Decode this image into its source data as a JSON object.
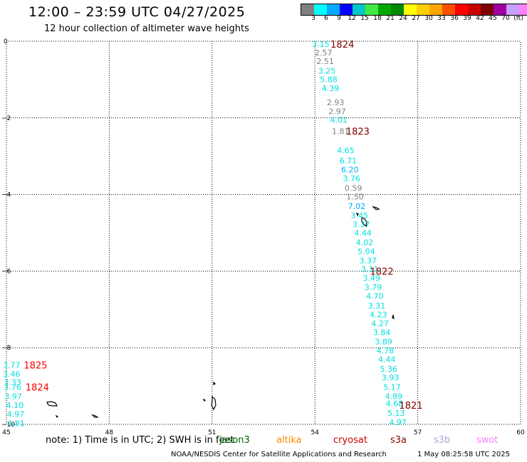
{
  "title": "12:00 – 23:59 UTC 04/27/2025",
  "subtitle": "12 hour collection of altimeter wave heights",
  "legend": {
    "colors": [
      "#808080",
      "#00ffff",
      "#00aaff",
      "#0000ff",
      "#00c8c8",
      "#44e844",
      "#00aa00",
      "#008800",
      "#ffff00",
      "#ffd000",
      "#ffa500",
      "#ff5000",
      "#ff0000",
      "#c80000",
      "#800000",
      "#a000a0",
      "#c8a0ff",
      "#ff80ff",
      "#000000"
    ],
    "labels": [
      "3",
      "6",
      "9",
      "12",
      "15",
      "18",
      "21",
      "24",
      "27",
      "30",
      "33",
      "36",
      "39",
      "42",
      "45",
      "70",
      "(ft)"
    ]
  },
  "axes": {
    "x_ticks": [
      "45",
      "48",
      "51",
      "54",
      "57",
      "60"
    ],
    "y_ticks": [
      "0",
      "−2",
      "−4",
      "−6",
      "−8",
      "−10"
    ],
    "x_range": [
      45,
      60
    ],
    "y_range": [
      0,
      -10
    ]
  },
  "wave_labels": [
    {
      "lon": 54.17,
      "lat": -0.07,
      "text": "3.15",
      "color": "#00e0e0"
    },
    {
      "lon": 54.25,
      "lat": -0.3,
      "text": "2.57",
      "color": "#808080"
    },
    {
      "lon": 54.3,
      "lat": -0.52,
      "text": "2.51",
      "color": "#808080"
    },
    {
      "lon": 54.35,
      "lat": -0.77,
      "text": "3.25",
      "color": "#00e0e0"
    },
    {
      "lon": 54.4,
      "lat": -0.99,
      "text": "5.88",
      "color": "#00e0e0"
    },
    {
      "lon": 54.45,
      "lat": -1.22,
      "text": "4.39",
      "color": "#00e0e0"
    },
    {
      "lon": 54.6,
      "lat": -1.6,
      "text": "2.93",
      "color": "#808080"
    },
    {
      "lon": 54.65,
      "lat": -1.83,
      "text": "2.97",
      "color": "#808080"
    },
    {
      "lon": 54.7,
      "lat": -2.05,
      "text": "4.01",
      "color": "#00e0e0"
    },
    {
      "lon": 54.75,
      "lat": -2.35,
      "text": "1.81",
      "color": "#808080"
    },
    {
      "lon": 54.9,
      "lat": -2.85,
      "text": "4.65",
      "color": "#00e0e0"
    },
    {
      "lon": 54.97,
      "lat": -3.12,
      "text": "6.71",
      "color": "#00e0e0"
    },
    {
      "lon": 55.02,
      "lat": -3.35,
      "text": "6.20",
      "color": "#00aaff"
    },
    {
      "lon": 55.07,
      "lat": -3.58,
      "text": "3.76",
      "color": "#00e0e0"
    },
    {
      "lon": 55.12,
      "lat": -3.83,
      "text": "0.59",
      "color": "#808080"
    },
    {
      "lon": 55.17,
      "lat": -4.05,
      "text": "1.50",
      "color": "#808080"
    },
    {
      "lon": 55.22,
      "lat": -4.3,
      "text": "7.02",
      "color": "#00aaff"
    },
    {
      "lon": 55.3,
      "lat": -4.55,
      "text": "3.45",
      "color": "#00e0e0"
    },
    {
      "lon": 55.35,
      "lat": -4.78,
      "text": "3.37",
      "color": "#00e0e0"
    },
    {
      "lon": 55.4,
      "lat": -5.0,
      "text": "4.44",
      "color": "#00e0e0"
    },
    {
      "lon": 55.45,
      "lat": -5.25,
      "text": "4.02",
      "color": "#00e0e0"
    },
    {
      "lon": 55.5,
      "lat": -5.48,
      "text": "5.04",
      "color": "#00e0e0"
    },
    {
      "lon": 55.55,
      "lat": -5.72,
      "text": "3.37",
      "color": "#00e0e0"
    },
    {
      "lon": 55.6,
      "lat": -5.95,
      "text": "3.11",
      "color": "#00e0e0"
    },
    {
      "lon": 55.65,
      "lat": -6.18,
      "text": "3.49",
      "color": "#00e0e0"
    },
    {
      "lon": 55.7,
      "lat": -6.42,
      "text": "3.79",
      "color": "#00e0e0"
    },
    {
      "lon": 55.75,
      "lat": -6.65,
      "text": "4.70",
      "color": "#00e0e0"
    },
    {
      "lon": 55.8,
      "lat": -6.9,
      "text": "3.31",
      "color": "#00e0e0"
    },
    {
      "lon": 55.85,
      "lat": -7.13,
      "text": "4.23",
      "color": "#00e0e0"
    },
    {
      "lon": 55.9,
      "lat": -7.37,
      "text": "4.27",
      "color": "#00e0e0"
    },
    {
      "lon": 55.95,
      "lat": -7.6,
      "text": "3.84",
      "color": "#00e0e0"
    },
    {
      "lon": 56.0,
      "lat": -7.84,
      "text": "3.89",
      "color": "#00e0e0"
    },
    {
      "lon": 56.05,
      "lat": -8.07,
      "text": "4.78",
      "color": "#00e0e0"
    },
    {
      "lon": 56.1,
      "lat": -8.3,
      "text": "4.44",
      "color": "#00e0e0"
    },
    {
      "lon": 56.15,
      "lat": -8.55,
      "text": "5.36",
      "color": "#00e0e0"
    },
    {
      "lon": 56.2,
      "lat": -8.78,
      "text": "3.93",
      "color": "#00e0e0"
    },
    {
      "lon": 56.25,
      "lat": -9.03,
      "text": "5.17",
      "color": "#00e0e0"
    },
    {
      "lon": 56.3,
      "lat": -9.27,
      "text": "4.89",
      "color": "#00e0e0"
    },
    {
      "lon": 56.32,
      "lat": -9.45,
      "text": "4.68",
      "color": "#00e0e0"
    },
    {
      "lon": 56.37,
      "lat": -9.7,
      "text": "5.13",
      "color": "#00e0e0"
    },
    {
      "lon": 56.42,
      "lat": -9.94,
      "text": "4.97",
      "color": "#00e0e0"
    },
    {
      "lon": 45.15,
      "lat": -8.45,
      "text": "3.77",
      "color": "#00e0e0"
    },
    {
      "lon": 45.15,
      "lat": -8.68,
      "text": "3.46",
      "color": "#00e0e0"
    },
    {
      "lon": 45.18,
      "lat": -8.9,
      "text": "3.33",
      "color": "#00e0e0"
    },
    {
      "lon": 45.18,
      "lat": -9.03,
      "text": "3.76",
      "color": "#00e0e0"
    },
    {
      "lon": 45.2,
      "lat": -9.27,
      "text": "3.97",
      "color": "#00e0e0"
    },
    {
      "lon": 45.25,
      "lat": -9.5,
      "text": "4.10",
      "color": "#00e0e0"
    },
    {
      "lon": 45.27,
      "lat": -9.73,
      "text": "4.97",
      "color": "#00e0e0"
    },
    {
      "lon": 45.28,
      "lat": -9.97,
      "text": "4.81",
      "color": "#00e0e0"
    }
  ],
  "pass_labels": [
    {
      "lon": 54.8,
      "lat": -0.07,
      "text": "1824",
      "color": "#800000"
    },
    {
      "lon": 55.25,
      "lat": -2.35,
      "text": "1823",
      "color": "#800000"
    },
    {
      "lon": 55.95,
      "lat": -6.0,
      "text": "1822",
      "color": "#800000"
    },
    {
      "lon": 56.8,
      "lat": -9.5,
      "text": "1821",
      "color": "#800000"
    },
    {
      "lon": 45.85,
      "lat": -8.45,
      "text": "1825",
      "color": "#ff0000"
    },
    {
      "lon": 45.9,
      "lat": -9.03,
      "text": "1824",
      "color": "#ff0000"
    }
  ],
  "note": "note:  1) Time is in UTC; 2) SWH is in feet",
  "satellites": [
    {
      "name": "jason3",
      "color": "#006400"
    },
    {
      "name": "altika",
      "color": "#ff8c00"
    },
    {
      "name": "cryosat",
      "color": "#cc0000"
    },
    {
      "name": "s3a",
      "color": "#8b0000"
    },
    {
      "name": "s3b",
      "color": "#b0a0e0"
    },
    {
      "name": "swot",
      "color": "#ff80ff"
    }
  ],
  "credit": "NOAA/NESDIS Center for Satellite Applications and Research",
  "timestamp": "1 May 08:25:58 UTC 2025"
}
